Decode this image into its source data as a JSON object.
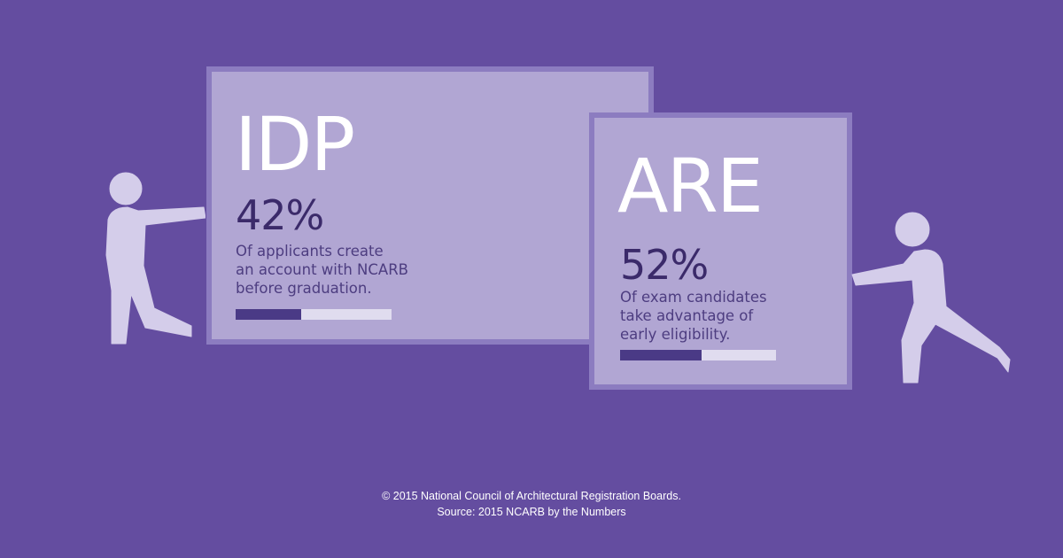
{
  "idp": {
    "title": "IDP",
    "percent": "42%",
    "description_lines": [
      "Of applicants create",
      "an account with NCARB",
      "before graduation."
    ],
    "progress": 0.42
  },
  "are": {
    "title": "ARE",
    "percent": "52%",
    "description_lines": [
      "Of exam candidates",
      "take advantage of",
      "early eligibility."
    ],
    "progress": 0.52
  },
  "footer": {
    "copyright": "© 2015 National Council of Architectural Registration Boards.",
    "source": "Source: 2015 NCARB by the Numbers"
  },
  "colors": {
    "background": "#644da0",
    "card_fill": "#b1a6d3",
    "card_border": "#8c7cc0",
    "figure": "#d4cdea",
    "bar_fill": "#4a3a86",
    "bar_track": "#e0dcef"
  }
}
